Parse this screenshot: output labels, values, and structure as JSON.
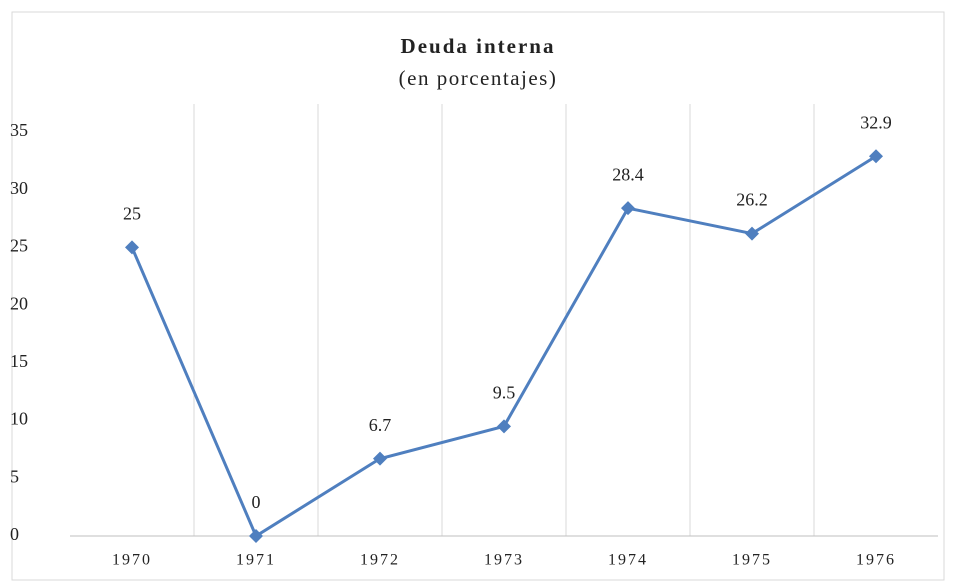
{
  "chart_data": {
    "type": "line",
    "title": "Deuda interna",
    "subtitle": "(en porcentajes)",
    "categories": [
      "1970",
      "1971",
      "1972",
      "1973",
      "1974",
      "1975",
      "1976"
    ],
    "values": [
      25,
      0,
      6.7,
      9.5,
      28.4,
      26.2,
      32.9
    ],
    "color": "#4f7fbf",
    "ylim": [
      0,
      35
    ],
    "yticks": [
      0,
      5,
      10,
      15,
      20,
      25,
      30,
      35
    ],
    "category_grid": true
  }
}
